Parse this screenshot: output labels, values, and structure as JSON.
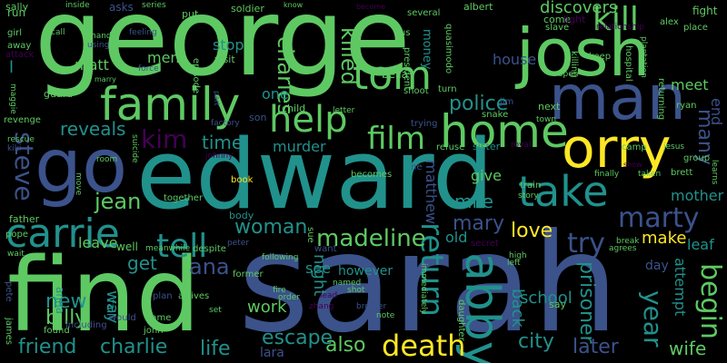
{
  "background": "#000000",
  "words": [
    {
      "id": "george",
      "text": "george"
    },
    {
      "id": "sarah",
      "text": "sarah"
    },
    {
      "id": "edward",
      "text": "edward"
    },
    {
      "id": "find",
      "text": "find"
    },
    {
      "id": "josh",
      "text": "josh"
    },
    {
      "id": "man",
      "text": "man"
    },
    {
      "id": "go",
      "text": "go"
    },
    {
      "id": "orry",
      "text": "orry"
    },
    {
      "id": "family",
      "text": "family"
    },
    {
      "id": "home",
      "text": "home"
    },
    {
      "id": "carrie",
      "text": "carrie"
    },
    {
      "id": "take",
      "text": "take"
    },
    {
      "id": "help",
      "text": "help"
    },
    {
      "id": "tom",
      "text": "tom"
    },
    {
      "id": "kill",
      "text": "kill"
    },
    {
      "id": "tell",
      "text": "tell"
    },
    {
      "id": "film",
      "text": "film"
    },
    {
      "id": "kim",
      "text": "kim"
    },
    {
      "id": "abby",
      "text": "abby"
    },
    {
      "id": "death",
      "text": "death"
    },
    {
      "id": "return",
      "text": "return"
    },
    {
      "id": "marty",
      "text": "marty"
    },
    {
      "id": "try",
      "text": "try"
    },
    {
      "id": "steve",
      "text": "steve"
    },
    {
      "id": "begin",
      "text": "begin"
    },
    {
      "id": "madeline",
      "text": "madeline"
    },
    {
      "id": "police",
      "text": "police"
    },
    {
      "id": "charles",
      "text": "charles"
    },
    {
      "id": "killed",
      "text": "killed"
    },
    {
      "id": "year",
      "text": "year"
    },
    {
      "id": "many",
      "text": "many"
    },
    {
      "id": "jean",
      "text": "jean"
    },
    {
      "id": "time",
      "text": "time"
    },
    {
      "id": "woman",
      "text": "woman"
    },
    {
      "id": "ana",
      "text": "ana"
    },
    {
      "id": "mary",
      "text": "mary"
    },
    {
      "id": "love",
      "text": "love"
    },
    {
      "id": "mile",
      "text": "mile"
    },
    {
      "id": "reveals",
      "text": "reveals"
    },
    {
      "id": "friend",
      "text": "friend"
    },
    {
      "id": "charlie",
      "text": "charlie"
    },
    {
      "id": "life",
      "text": "life"
    },
    {
      "id": "escape",
      "text": "escape"
    },
    {
      "id": "also",
      "text": "also"
    },
    {
      "id": "city",
      "text": "city"
    },
    {
      "id": "later",
      "text": "later"
    },
    {
      "id": "wife",
      "text": "wife"
    },
    {
      "id": "new",
      "text": "new"
    },
    {
      "id": "billy",
      "text": "billy"
    },
    {
      "id": "get",
      "text": "get"
    },
    {
      "id": "leave",
      "text": "leave"
    },
    {
      "id": "way",
      "text": "way"
    },
    {
      "id": "work",
      "text": "work"
    },
    {
      "id": "see",
      "text": "see"
    },
    {
      "id": "prisoner",
      "text": "prisoner"
    },
    {
      "id": "school",
      "text": "school"
    },
    {
      "id": "back",
      "text": "back"
    },
    {
      "id": "make",
      "text": "make"
    },
    {
      "id": "mother",
      "text": "mother"
    },
    {
      "id": "attempt",
      "text": "attempt"
    },
    {
      "id": "end",
      "text": "end"
    },
    {
      "id": "meet",
      "text": "meet"
    },
    {
      "id": "discovers",
      "text": "discovers"
    },
    {
      "id": "house",
      "text": "house"
    },
    {
      "id": "matt",
      "text": "matt"
    },
    {
      "id": "men",
      "text": "men"
    },
    {
      "id": "stop",
      "text": "stop"
    },
    {
      "id": "one",
      "text": "one"
    },
    {
      "id": "murder",
      "text": "murder"
    },
    {
      "id": "night",
      "text": "night"
    },
    {
      "id": "old",
      "text": "old"
    },
    {
      "id": "give",
      "text": "give"
    },
    {
      "id": "matthew",
      "text": "matthew"
    },
    {
      "id": "day",
      "text": "day"
    },
    {
      "id": "leaf",
      "text": "leaf"
    },
    {
      "id": "lara",
      "text": "lara"
    },
    {
      "id": "bella",
      "text": "bella"
    },
    {
      "id": "money",
      "text": "money"
    },
    {
      "id": "l",
      "text": "l"
    },
    {
      "id": "run",
      "text": "run"
    },
    {
      "id": "sally",
      "text": "sally"
    },
    {
      "id": "girl",
      "text": "girl"
    },
    {
      "id": "away",
      "text": "away"
    },
    {
      "id": "attack",
      "text": "attack"
    },
    {
      "id": "guard",
      "text": "guard"
    },
    {
      "id": "revenge",
      "text": "revenge"
    },
    {
      "id": "father",
      "text": "father"
    },
    {
      "id": "pope",
      "text": "pope"
    },
    {
      "id": "pete",
      "text": "pete"
    },
    {
      "id": "james",
      "text": "james"
    },
    {
      "id": "found",
      "text": "found"
    },
    {
      "id": "would",
      "text": "would"
    },
    {
      "id": "john",
      "text": "john"
    },
    {
      "id": "name",
      "text": "name"
    },
    {
      "id": "fall",
      "text": "fall"
    },
    {
      "id": "well",
      "text": "well"
    },
    {
      "id": "including",
      "text": "including"
    },
    {
      "id": "anna",
      "text": "anna"
    },
    {
      "id": "episode",
      "text": "episode"
    },
    {
      "id": "visit",
      "text": "visit"
    },
    {
      "id": "put",
      "text": "put"
    },
    {
      "id": "soldier",
      "text": "soldier"
    },
    {
      "id": "president",
      "text": "president"
    },
    {
      "id": "hand",
      "text": "hand"
    },
    {
      "id": "using",
      "text": "using"
    },
    {
      "id": "asks",
      "text": "asks"
    },
    {
      "id": "inside",
      "text": "inside"
    },
    {
      "id": "series",
      "text": "series"
    },
    {
      "id": "call",
      "text": "call"
    },
    {
      "id": "marry",
      "text": "marry"
    },
    {
      "id": "force",
      "text": "force"
    },
    {
      "id": "feeling",
      "text": "feeling"
    },
    {
      "id": "part",
      "text": "part"
    },
    {
      "id": "factory",
      "text": "factory"
    },
    {
      "id": "son",
      "text": "son"
    },
    {
      "id": "child",
      "text": "child"
    },
    {
      "id": "letter",
      "text": "letter"
    },
    {
      "id": "know",
      "text": "know"
    },
    {
      "id": "become",
      "text": "become"
    },
    {
      "id": "several",
      "text": "several"
    },
    {
      "id": "albert",
      "text": "albert"
    },
    {
      "id": "us",
      "text": "us"
    },
    {
      "id": "quasimodo",
      "text": "quasimodo"
    },
    {
      "id": "jim",
      "text": "jim"
    },
    {
      "id": "shoot",
      "text": "shoot"
    },
    {
      "id": "turn",
      "text": "turn"
    },
    {
      "id": "trying",
      "text": "trying"
    },
    {
      "id": "snake",
      "text": "snake"
    },
    {
      "id": "refuse",
      "text": "refuse"
    },
    {
      "id": "sister",
      "text": "sister"
    },
    {
      "id": "come",
      "text": "come"
    },
    {
      "id": "slave",
      "text": "slave"
    },
    {
      "id": "light",
      "text": "light"
    },
    {
      "id": "killing",
      "text": "killing"
    },
    {
      "id": "open",
      "text": "open"
    },
    {
      "id": "keep",
      "text": "keep"
    },
    {
      "id": "relationship",
      "text": "relationship"
    },
    {
      "id": "hospital",
      "text": "hospital"
    },
    {
      "id": "plantation",
      "text": "plantation"
    },
    {
      "id": "returning",
      "text": "returning"
    },
    {
      "id": "ryan",
      "text": "ryan"
    },
    {
      "id": "alex",
      "text": "alex"
    },
    {
      "id": "place",
      "text": "place"
    },
    {
      "id": "fight",
      "text": "fight"
    },
    {
      "id": "next",
      "text": "next"
    },
    {
      "id": "town",
      "text": "town"
    },
    {
      "id": "camp",
      "text": "camp"
    },
    {
      "id": "jesus",
      "text": "jesus"
    },
    {
      "id": "group",
      "text": "group"
    },
    {
      "id": "brett",
      "text": "brett"
    },
    {
      "id": "learns",
      "text": "learns"
    },
    {
      "id": "show",
      "text": "show"
    },
    {
      "id": "taken",
      "text": "taken"
    },
    {
      "id": "finally",
      "text": "finally"
    },
    {
      "id": "royal",
      "text": "royal"
    },
    {
      "id": "train",
      "text": "train"
    },
    {
      "id": "story",
      "text": "story"
    },
    {
      "id": "becomes",
      "text": "becomes"
    },
    {
      "id": "ne",
      "text": "ne"
    },
    {
      "id": "book",
      "text": "book"
    },
    {
      "id": "together",
      "text": "together"
    },
    {
      "id": "body",
      "text": "body"
    },
    {
      "id": "despite",
      "text": "despite"
    },
    {
      "id": "meanwhile",
      "text": "meanwhile"
    },
    {
      "id": "arrives",
      "text": "arrives"
    },
    {
      "id": "plan",
      "text": "plan"
    },
    {
      "id": "peter",
      "text": "peter"
    },
    {
      "id": "sue",
      "text": "sue"
    },
    {
      "id": "former",
      "text": "former"
    },
    {
      "id": "following",
      "text": "following"
    },
    {
      "id": "want",
      "text": "want"
    },
    {
      "id": "named",
      "text": "named"
    },
    {
      "id": "fire",
      "text": "fire"
    },
    {
      "id": "order",
      "text": "order"
    },
    {
      "id": "zhang",
      "text": "zhang"
    },
    {
      "id": "lead",
      "text": "lead"
    },
    {
      "id": "shot",
      "text": "shot"
    },
    {
      "id": "however",
      "text": "however"
    },
    {
      "id": "brother",
      "text": "brother"
    },
    {
      "id": "note",
      "text": "note"
    },
    {
      "id": "immediately",
      "text": "immediately"
    },
    {
      "id": "daughter",
      "text": "daughter"
    },
    {
      "id": "left",
      "text": "left"
    },
    {
      "id": "high",
      "text": "high"
    },
    {
      "id": "secret",
      "text": "secret"
    },
    {
      "id": "break",
      "text": "break"
    },
    {
      "id": "agrees",
      "text": "agrees"
    },
    {
      "id": "say",
      "text": "say"
    },
    {
      "id": "room",
      "text": "room"
    },
    {
      "id": "move",
      "text": "move"
    },
    {
      "id": "suicide",
      "text": "suicide"
    },
    {
      "id": "johnny",
      "text": "johnny"
    },
    {
      "id": "set",
      "text": "set"
    },
    {
      "id": "kiki",
      "text": "kiki"
    },
    {
      "id": "rescue",
      "text": "rescue"
    },
    {
      "id": "maggie",
      "text": "maggie"
    },
    {
      "id": "wait",
      "text": "wait"
    }
  ]
}
